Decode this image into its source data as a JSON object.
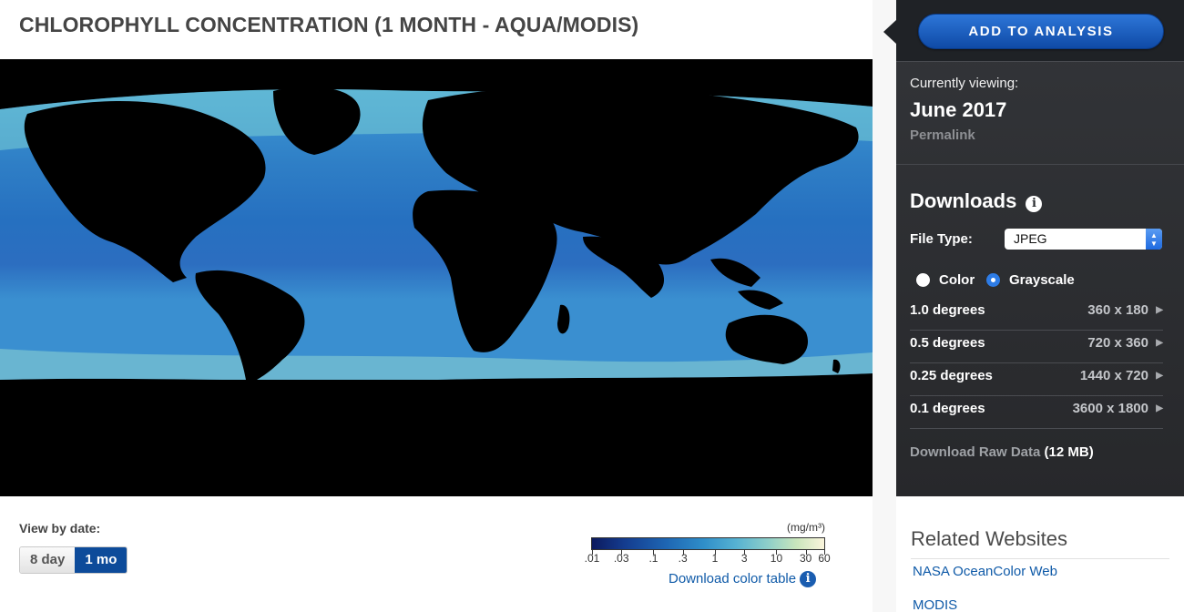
{
  "page_title": "CHLOROPHYLL CONCENTRATION (1 MONTH - AQUA/MODIS)",
  "view": {
    "label": "View by date:",
    "options": [
      "8 day",
      "1 mo"
    ],
    "selected": "1 mo"
  },
  "legend": {
    "unit": "(mg/m³)",
    "ticks": [
      ".01",
      ".03",
      ".1",
      ".3",
      "1",
      "3",
      "10",
      "30",
      "60"
    ],
    "download_label": "Download color table",
    "info_icon": "i"
  },
  "sidebar": {
    "add_button": "ADD TO ANALYSIS",
    "currently_viewing_label": "Currently viewing:",
    "currently_viewing_value": "June 2017",
    "permalink": "Permalink",
    "downloads_heading": "Downloads",
    "info_icon": "i",
    "file_type_label": "File Type:",
    "file_type_value": "JPEG",
    "color_options": [
      "Color",
      "Grayscale"
    ],
    "color_selected": "Grayscale",
    "resolutions": [
      {
        "degrees": "1.0 degrees",
        "size": "360 x 180"
      },
      {
        "degrees": "0.5 degrees",
        "size": "720 x 360"
      },
      {
        "degrees": "0.25 degrees",
        "size": "1440 x 720"
      },
      {
        "degrees": "0.1 degrees",
        "size": "3600 x 1800"
      }
    ],
    "raw_label": "Download Raw Data",
    "raw_size": "(12 MB)"
  },
  "related": {
    "title": "Related Websites",
    "links": [
      "NASA OceanColor Web",
      "MODIS"
    ]
  },
  "colors": {
    "accent": "#0d4b9a",
    "sidebar_bg": "#2b2d31",
    "link": "#0f5aa8",
    "ocean_low": "#143c8f",
    "ocean_high": "#c9e6bc"
  }
}
